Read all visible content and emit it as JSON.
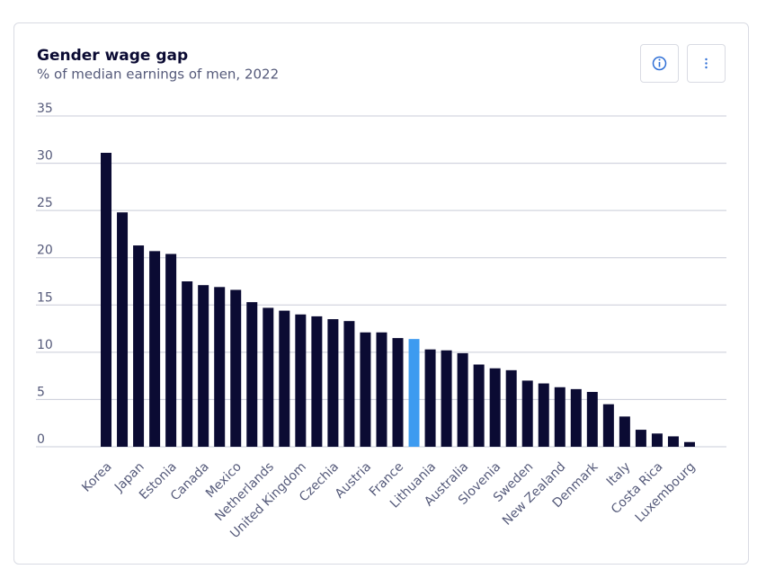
{
  "chart_data": {
    "type": "bar",
    "title": "Gender wage gap",
    "subtitle": "% of median earnings of men, 2022",
    "categories": [
      "Korea",
      null,
      "Japan",
      null,
      "Estonia",
      null,
      "Canada",
      null,
      "Mexico",
      null,
      "Netherlands",
      null,
      "United Kingdom",
      null,
      "Czechia",
      null,
      "Austria",
      null,
      "France",
      null,
      "Lithuania",
      null,
      "Australia",
      null,
      "Slovenia",
      null,
      "Sweden",
      null,
      "New Zealand",
      null,
      "Denmark",
      null,
      "Italy",
      null,
      "Costa Rica",
      null,
      "Luxembourg"
    ],
    "values": [
      31.1,
      24.8,
      21.3,
      20.7,
      20.4,
      17.5,
      17.1,
      16.9,
      16.6,
      15.3,
      14.7,
      14.4,
      14.0,
      13.8,
      13.5,
      13.3,
      12.1,
      12.1,
      11.5,
      11.4,
      10.3,
      10.2,
      9.9,
      8.7,
      8.3,
      8.1,
      7.0,
      6.7,
      6.3,
      6.1,
      5.8,
      4.5,
      3.2,
      1.8,
      1.4,
      1.1,
      0.5
    ],
    "color": "#0b0b33",
    "highlight_color": "#3d9bf0",
    "highlight": [
      19
    ],
    "ylim": [
      0,
      35
    ],
    "yticks": [
      0,
      5,
      10,
      15,
      20,
      25,
      30,
      35
    ],
    "grid": true
  }
}
